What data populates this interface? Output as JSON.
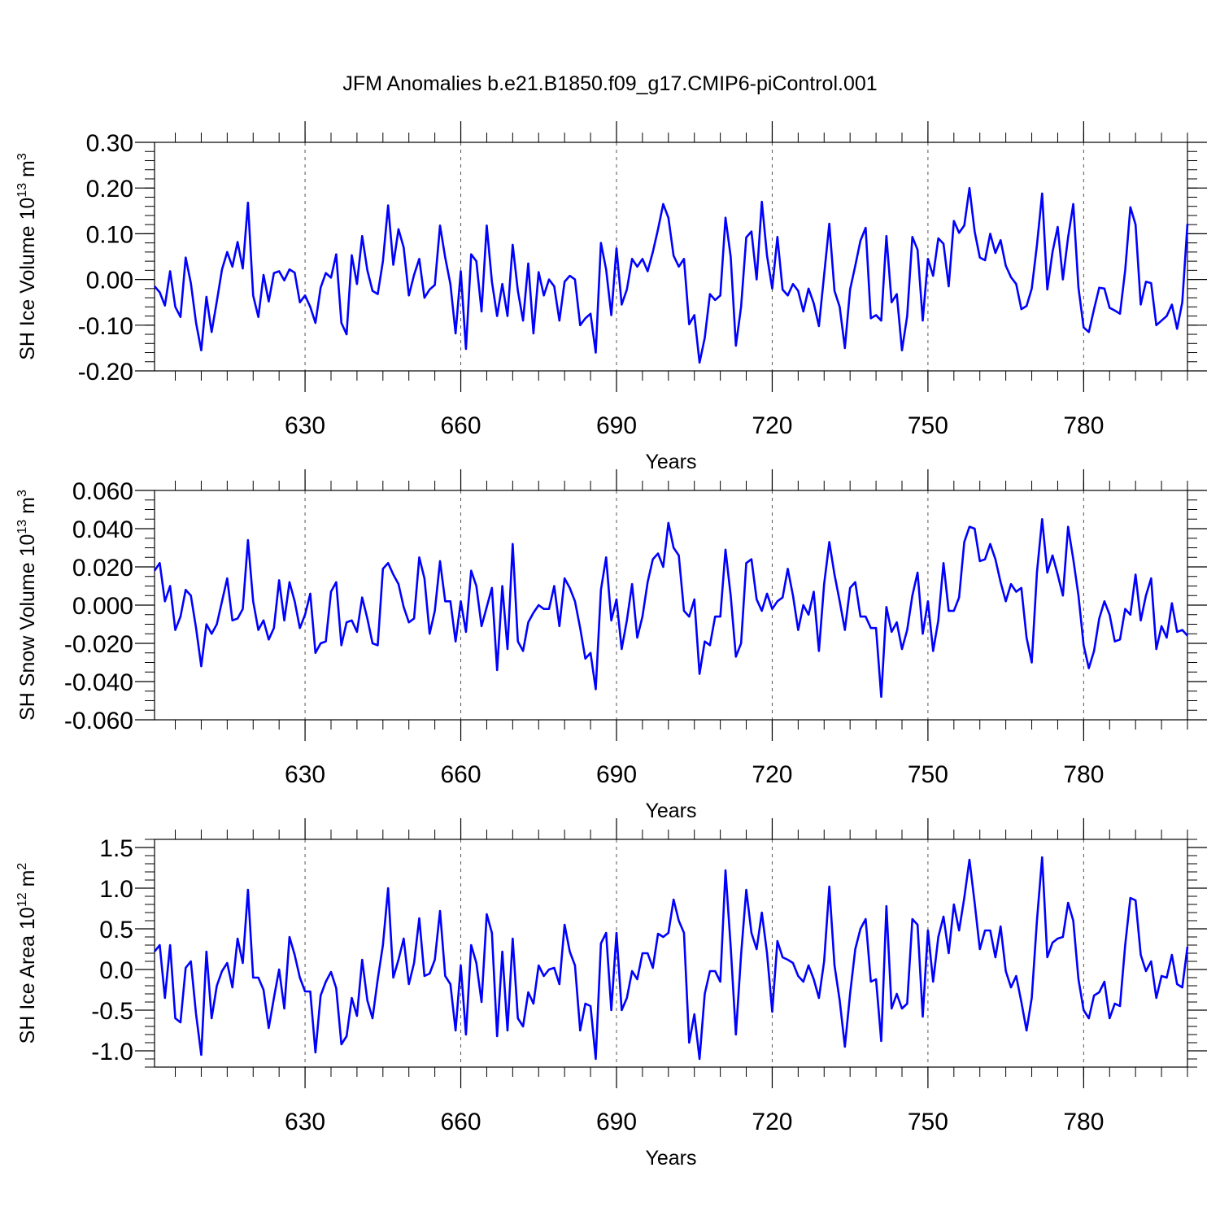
{
  "title": "JFM Anomalies b.e21.B1850.f09_g17.CMIP6-piControl.001",
  "chart_data": [
    {
      "type": "line",
      "ylabel": "SH Ice Volume 10",
      "ylabel_exp": "13",
      "ylabel_unit": " m",
      "ylabel_unit_exp": "3",
      "xlabel": "Years",
      "xlim": [
        601,
        800
      ],
      "ylim": [
        -0.2,
        0.3
      ],
      "yticks": [
        -0.2,
        -0.1,
        0.0,
        0.1,
        0.2,
        0.3
      ],
      "ytick_labels": [
        "-0.20",
        "-0.10",
        "0.00",
        "0.10",
        "0.20",
        "0.30"
      ],
      "yminor": 0.02,
      "xticks": [
        630,
        660,
        690,
        720,
        750,
        780
      ],
      "xtick_labels": [
        "630",
        "660",
        "690",
        "720",
        "750",
        "780"
      ],
      "xminor": 5,
      "grid": "vertical dashed at major x ticks",
      "color": "#0000ff",
      "x_start": 601,
      "values": [
        -0.015,
        -0.028,
        -0.057,
        0.018,
        -0.06,
        -0.082,
        0.048,
        -0.008,
        -0.095,
        -0.155,
        -0.038,
        -0.115,
        -0.048,
        0.022,
        0.06,
        0.028,
        0.082,
        0.024,
        0.168,
        -0.035,
        -0.082,
        0.01,
        -0.048,
        0.014,
        0.018,
        -0.002,
        0.022,
        0.015,
        -0.05,
        -0.035,
        -0.06,
        -0.095,
        -0.018,
        0.014,
        0.004,
        0.055,
        -0.095,
        -0.12,
        0.053,
        -0.01,
        0.095,
        0.02,
        -0.025,
        -0.032,
        0.04,
        0.162,
        0.032,
        0.11,
        0.07,
        -0.035,
        0.01,
        0.045,
        -0.04,
        -0.022,
        -0.012,
        0.118,
        0.048,
        -0.01,
        -0.118,
        0.018,
        -0.152,
        0.055,
        0.04,
        -0.07,
        0.118,
        -0.005,
        -0.08,
        -0.01,
        -0.08,
        0.076,
        -0.025,
        -0.09,
        0.035,
        -0.118,
        0.016,
        -0.035,
        0.0,
        -0.015,
        -0.09,
        -0.005,
        0.008,
        0.0,
        -0.1,
        -0.085,
        -0.075,
        -0.16,
        0.08,
        0.022,
        -0.078,
        0.068,
        -0.055,
        -0.022,
        0.045,
        0.028,
        0.045,
        0.018,
        0.06,
        0.11,
        0.165,
        0.135,
        0.052,
        0.028,
        0.045,
        -0.098,
        -0.078,
        -0.182,
        -0.128,
        -0.032,
        -0.045,
        -0.035,
        0.135,
        0.05,
        -0.145,
        -0.06,
        0.092,
        0.105,
        0.0,
        0.17,
        0.052,
        -0.02,
        0.093,
        -0.022,
        -0.035,
        -0.01,
        -0.025,
        -0.07,
        -0.02,
        -0.052,
        -0.102,
        0.01,
        0.122,
        -0.025,
        -0.06,
        -0.15,
        -0.022,
        0.03,
        0.085,
        0.113,
        -0.085,
        -0.078,
        -0.09,
        0.095,
        -0.05,
        -0.032,
        -0.155,
        -0.08,
        0.093,
        0.065,
        -0.09,
        0.045,
        0.008,
        0.09,
        0.078,
        -0.015,
        0.128,
        0.102,
        0.118,
        0.2,
        0.105,
        0.048,
        0.042,
        0.1,
        0.058,
        0.086,
        0.03,
        0.005,
        -0.01,
        -0.065,
        -0.058,
        -0.02,
        0.075,
        0.188,
        -0.022,
        0.06,
        0.115,
        0.0,
        0.092,
        0.165,
        -0.018,
        -0.105,
        -0.115,
        -0.065,
        -0.018,
        -0.02,
        -0.062,
        -0.068,
        -0.075,
        0.02,
        0.158,
        0.12,
        -0.055,
        -0.005,
        -0.008,
        -0.1,
        -0.09,
        -0.08,
        -0.055,
        -0.108,
        -0.05,
        0.122
      ]
    },
    {
      "type": "line",
      "ylabel": "SH Snow Volume 10",
      "ylabel_exp": "13",
      "ylabel_unit": " m",
      "ylabel_unit_exp": "3",
      "xlabel": "Years",
      "xlim": [
        601,
        800
      ],
      "ylim": [
        -0.06,
        0.06
      ],
      "yticks": [
        -0.06,
        -0.04,
        -0.02,
        0.0,
        0.02,
        0.04,
        0.06
      ],
      "ytick_labels": [
        "-0.060",
        "-0.040",
        "-0.020",
        "0.000",
        "0.020",
        "0.040",
        "0.060"
      ],
      "yminor": 0.005,
      "xticks": [
        630,
        660,
        690,
        720,
        750,
        780
      ],
      "xtick_labels": [
        "630",
        "660",
        "690",
        "720",
        "750",
        "780"
      ],
      "xminor": 5,
      "grid": "vertical dashed at major x ticks",
      "color": "#0000ff",
      "x_start": 601,
      "values": [
        0.018,
        0.022,
        0.002,
        0.01,
        -0.013,
        -0.006,
        0.008,
        0.005,
        -0.012,
        -0.032,
        -0.01,
        -0.015,
        -0.01,
        0.002,
        0.014,
        -0.008,
        -0.007,
        -0.002,
        0.034,
        0.002,
        -0.013,
        -0.008,
        -0.018,
        -0.012,
        0.013,
        -0.008,
        0.012,
        0.002,
        -0.012,
        -0.005,
        0.006,
        -0.025,
        -0.02,
        -0.019,
        0.007,
        0.012,
        -0.021,
        -0.009,
        -0.008,
        -0.014,
        0.004,
        -0.007,
        -0.02,
        -0.021,
        0.019,
        0.022,
        0.016,
        0.011,
        -0.001,
        -0.009,
        -0.007,
        0.025,
        0.014,
        -0.015,
        -0.003,
        0.023,
        0.002,
        0.002,
        -0.019,
        0.002,
        -0.014,
        0.018,
        0.01,
        -0.011,
        -0.001,
        0.009,
        -0.034,
        0.01,
        -0.023,
        0.032,
        -0.019,
        -0.024,
        -0.009,
        -0.004,
        0.0,
        -0.002,
        -0.002,
        0.01,
        -0.011,
        0.014,
        0.009,
        0.002,
        -0.012,
        -0.028,
        -0.025,
        -0.044,
        0.008,
        0.025,
        -0.008,
        0.003,
        -0.023,
        -0.008,
        0.011,
        -0.017,
        -0.006,
        0.012,
        0.024,
        0.027,
        0.02,
        0.043,
        0.03,
        0.026,
        -0.003,
        -0.006,
        0.003,
        -0.036,
        -0.019,
        -0.021,
        -0.006,
        -0.006,
        0.029,
        0.005,
        -0.027,
        -0.02,
        0.022,
        0.024,
        0.003,
        -0.003,
        0.006,
        -0.002,
        0.002,
        0.004,
        0.019,
        0.005,
        -0.013,
        0.0,
        -0.005,
        0.007,
        -0.024,
        0.011,
        0.033,
        0.016,
        0.002,
        -0.013,
        0.009,
        0.012,
        -0.006,
        -0.006,
        -0.012,
        -0.012,
        -0.048,
        -0.001,
        -0.014,
        -0.009,
        -0.023,
        -0.013,
        0.005,
        0.017,
        -0.015,
        0.002,
        -0.024,
        -0.008,
        0.022,
        -0.003,
        -0.003,
        0.004,
        0.033,
        0.041,
        0.04,
        0.023,
        0.024,
        0.032,
        0.024,
        0.012,
        0.002,
        0.011,
        0.007,
        0.009,
        -0.017,
        -0.03,
        0.017,
        0.045,
        0.017,
        0.026,
        0.016,
        0.005,
        0.041,
        0.024,
        0.005,
        -0.021,
        -0.033,
        -0.024,
        -0.007,
        0.002,
        -0.005,
        -0.019,
        -0.018,
        -0.002,
        -0.005,
        0.016,
        -0.008,
        0.005,
        0.014,
        -0.023,
        -0.011,
        -0.017,
        0.001,
        -0.014,
        -0.013,
        -0.016
      ]
    },
    {
      "type": "line",
      "ylabel": "SH Ice Area 10",
      "ylabel_exp": "12",
      "ylabel_unit": " m",
      "ylabel_unit_exp": "2",
      "xlabel": "Years",
      "xlim": [
        601,
        800
      ],
      "ylim": [
        -1.2,
        1.6
      ],
      "yticks": [
        -1.0,
        -0.5,
        0.0,
        0.5,
        1.0,
        1.5
      ],
      "ytick_labels": [
        "-1.0",
        "-0.5",
        "0.0",
        "0.5",
        "1.0",
        "1.5"
      ],
      "yminor": 0.1,
      "xticks": [
        630,
        660,
        690,
        720,
        750,
        780
      ],
      "xtick_labels": [
        "630",
        "660",
        "690",
        "720",
        "750",
        "780"
      ],
      "xminor": 5,
      "grid": "vertical dashed at major x ticks",
      "color": "#0000ff",
      "x_start": 601,
      "values": [
        0.22,
        0.3,
        -0.35,
        0.3,
        -0.6,
        -0.65,
        0.02,
        0.1,
        -0.55,
        -1.05,
        0.22,
        -0.6,
        -0.2,
        -0.02,
        0.08,
        -0.22,
        0.38,
        0.08,
        0.98,
        -0.1,
        -0.1,
        -0.25,
        -0.72,
        -0.35,
        0.0,
        -0.48,
        0.4,
        0.18,
        -0.1,
        -0.27,
        -0.27,
        -1.02,
        -0.32,
        -0.15,
        -0.03,
        -0.23,
        -0.92,
        -0.82,
        -0.35,
        -0.57,
        0.12,
        -0.38,
        -0.6,
        -0.12,
        0.3,
        1.0,
        -0.1,
        0.12,
        0.38,
        -0.18,
        0.08,
        0.63,
        -0.08,
        -0.05,
        0.12,
        0.72,
        -0.08,
        -0.18,
        -0.75,
        0.05,
        -0.8,
        0.3,
        0.08,
        -0.4,
        0.68,
        0.45,
        -0.82,
        0.22,
        -0.75,
        0.38,
        -0.6,
        -0.7,
        -0.28,
        -0.42,
        0.05,
        -0.08,
        0.0,
        0.02,
        -0.18,
        0.55,
        0.22,
        0.05,
        -0.75,
        -0.42,
        -0.45,
        -1.1,
        0.32,
        0.45,
        -0.5,
        0.45,
        -0.5,
        -0.35,
        -0.02,
        -0.12,
        0.2,
        0.2,
        0.02,
        0.44,
        0.4,
        0.45,
        0.86,
        0.6,
        0.45,
        -0.9,
        -0.55,
        -1.1,
        -0.3,
        -0.02,
        -0.02,
        -0.15,
        1.22,
        0.28,
        -0.8,
        0.18,
        0.98,
        0.45,
        0.25,
        0.7,
        0.2,
        -0.52,
        0.35,
        0.15,
        0.12,
        0.08,
        -0.08,
        -0.15,
        0.05,
        -0.12,
        -0.35,
        0.1,
        1.02,
        0.05,
        -0.38,
        -0.95,
        -0.3,
        0.25,
        0.5,
        0.62,
        -0.15,
        -0.12,
        -0.88,
        0.78,
        -0.48,
        -0.3,
        -0.48,
        -0.42,
        0.62,
        0.55,
        -0.58,
        0.48,
        -0.15,
        0.4,
        0.65,
        0.2,
        0.8,
        0.48,
        0.88,
        1.35,
        0.82,
        0.25,
        0.48,
        0.48,
        0.15,
        0.53,
        -0.02,
        -0.22,
        -0.08,
        -0.4,
        -0.75,
        -0.35,
        0.6,
        1.38,
        0.15,
        0.33,
        0.38,
        0.4,
        0.82,
        0.6,
        -0.12,
        -0.5,
        -0.6,
        -0.32,
        -0.28,
        -0.15,
        -0.6,
        -0.42,
        -0.45,
        0.3,
        0.88,
        0.85,
        0.18,
        -0.02,
        0.1,
        -0.35,
        -0.08,
        -0.1,
        0.18,
        -0.18,
        -0.22,
        0.28
      ]
    }
  ]
}
